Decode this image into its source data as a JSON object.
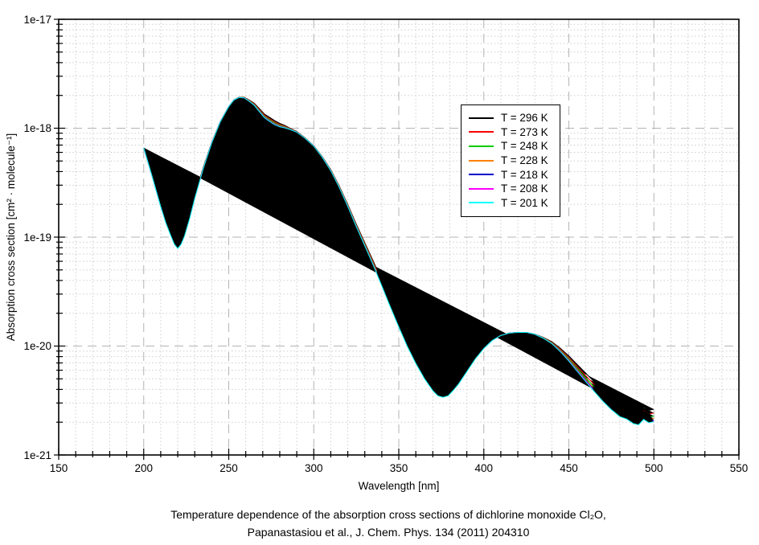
{
  "figure": {
    "background": "#ffffff"
  },
  "caption": {
    "line1": "Temperature dependence of the absorption cross sections of dichlorine monoxide Cl₂O,",
    "line2": "Papanastasiou et al., J. Chem. Phys. 134 (2011) 204310"
  },
  "chart_data": {
    "type": "line",
    "title": "",
    "xlabel": "Wavelength [nm]",
    "ylabel": "Absorption cross section [cm² · molecule⁻¹]",
    "x_axis": {
      "min": 150,
      "max": 550,
      "major_tick_step": 50,
      "minor_tick_step": 10,
      "ticks": [
        150,
        200,
        250,
        300,
        350,
        400,
        450,
        500,
        550
      ],
      "tick_labels": [
        "150",
        "200",
        "250",
        "300",
        "350",
        "400",
        "450",
        "500",
        "550"
      ]
    },
    "y_axis": {
      "scale": "log10",
      "min_exp": -21,
      "max_exp": -17,
      "ticks": [
        {
          "exp": -17,
          "label": "1e-17"
        },
        {
          "exp": -18,
          "label": "1e-18"
        },
        {
          "exp": -19,
          "label": "1e-19"
        },
        {
          "exp": -20,
          "label": "1e-20"
        },
        {
          "exp": -21,
          "label": "1e-21"
        }
      ]
    },
    "grid": {
      "major": "dashed",
      "minor": "dotted",
      "major_color": "#b4b4b4",
      "minor_color": "#cdcdcd"
    },
    "legend_position": "inside-upper-right",
    "series": [
      {
        "name": "T = 296 K",
        "color": "#000000",
        "depth_fraction": 0.0
      },
      {
        "name": "T = 273 K",
        "color": "#ff0000",
        "depth_fraction": 0.3
      },
      {
        "name": "T = 248 K",
        "color": "#00cc00",
        "depth_fraction": 0.55
      },
      {
        "name": "T = 228 K",
        "color": "#ff8000",
        "depth_fraction": 0.74
      },
      {
        "name": "T = 218 K",
        "color": "#0000cc",
        "depth_fraction": 0.85
      },
      {
        "name": "T = 208 K",
        "color": "#ff00ff",
        "depth_fraction": 0.93
      },
      {
        "name": "T = 201 K",
        "color": "#00ffff",
        "depth_fraction": 1.0
      }
    ],
    "x_nm": [
      200,
      205,
      210,
      213,
      216,
      218,
      220,
      222,
      224,
      227,
      230,
      235,
      240,
      245,
      250,
      253,
      256,
      259,
      262,
      265,
      268,
      271,
      274,
      277,
      280,
      283,
      286,
      290,
      295,
      300,
      305,
      310,
      315,
      320,
      325,
      330,
      335,
      340,
      345,
      350,
      355,
      360,
      365,
      370,
      373,
      376,
      379,
      382,
      385,
      390,
      395,
      400,
      405,
      410,
      415,
      420,
      425,
      430,
      435,
      440,
      445,
      450,
      455,
      460,
      465,
      470,
      475,
      480,
      484,
      488,
      491,
      494,
      497,
      500
    ],
    "y_log10_base_296K": [
      -18.18,
      -18.44,
      -18.7,
      -18.83,
      -18.93,
      -18.99,
      -19.02,
      -18.99,
      -18.93,
      -18.79,
      -18.62,
      -18.36,
      -18.13,
      -17.94,
      -17.8,
      -17.74,
      -17.715,
      -17.715,
      -17.74,
      -17.77,
      -17.82,
      -17.87,
      -17.9,
      -17.93,
      -17.955,
      -17.975,
      -18.0,
      -18.03,
      -18.09,
      -18.16,
      -18.26,
      -18.38,
      -18.53,
      -18.7,
      -18.88,
      -19.05,
      -19.22,
      -19.4,
      -19.58,
      -19.75,
      -19.91,
      -20.05,
      -20.17,
      -20.27,
      -20.31,
      -20.32,
      -20.31,
      -20.27,
      -20.23,
      -20.15,
      -20.07,
      -20.0,
      -19.94,
      -19.9,
      -19.88,
      -19.875,
      -19.875,
      -19.89,
      -19.92,
      -19.96,
      -20.02,
      -20.09,
      -20.17,
      -20.25,
      -20.33,
      -20.41,
      -20.48,
      -20.54,
      -20.56,
      -20.6,
      -20.61,
      -20.56,
      -20.59,
      -20.58
    ],
    "y_log10_extra_depth_at_201K": [
      0,
      0.005,
      0.02,
      0.04,
      0.06,
      0.075,
      0.085,
      0.075,
      0.06,
      0.04,
      0.025,
      0.012,
      0.006,
      0.003,
      0.002,
      0.002,
      0.003,
      0.006,
      0.012,
      0.02,
      0.028,
      0.034,
      0.038,
      0.038,
      0.032,
      0.022,
      0.012,
      0.006,
      0.004,
      0.005,
      0.007,
      0.01,
      0.014,
      0.018,
      0.024,
      0.03,
      0.038,
      0.048,
      0.06,
      0.075,
      0.093,
      0.11,
      0.127,
      0.14,
      0.147,
      0.15,
      0.147,
      0.138,
      0.122,
      0.085,
      0.048,
      0.022,
      0.008,
      0.003,
      0.001,
      0,
      0,
      0.002,
      0.008,
      0.018,
      0.032,
      0.048,
      0.063,
      0.077,
      0.088,
      0.097,
      0.104,
      0.108,
      0.11,
      0.112,
      0.113,
      0.113,
      0.114,
      0.115
    ],
    "series_rule": "log10(sigma_i(x)) = y_log10_base_296K[x] - series[i].depth_fraction * y_log10_extra_depth_at_201K[x]"
  }
}
